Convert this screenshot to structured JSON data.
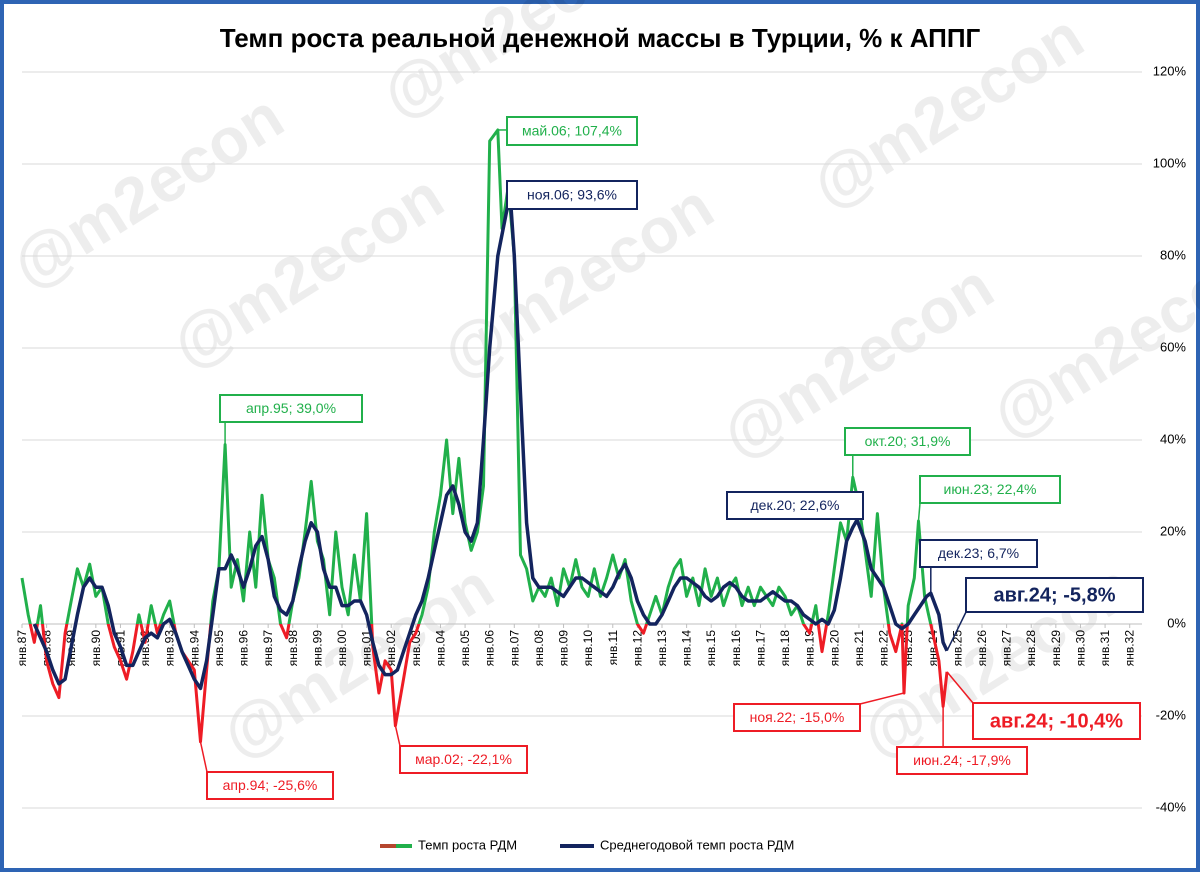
{
  "chart_data": {
    "type": "line",
    "title": "Темп роста реальной денежной массы в Турции, % к АППГ",
    "watermark": "@m2econ",
    "xlim": [
      1987,
      2032.5
    ],
    "xticks": [
      {
        "value": 1987,
        "label": "янв.87"
      },
      {
        "value": 1988,
        "label": "янв.88"
      },
      {
        "value": 1989,
        "label": "янв.89"
      },
      {
        "value": 1990,
        "label": "янв.90"
      },
      {
        "value": 1991,
        "label": "янв.91"
      },
      {
        "value": 1992,
        "label": "янв.92"
      },
      {
        "value": 1993,
        "label": "янв.93"
      },
      {
        "value": 1994,
        "label": "янв.94"
      },
      {
        "value": 1995,
        "label": "янв.95"
      },
      {
        "value": 1996,
        "label": "янв.96"
      },
      {
        "value": 1997,
        "label": "янв.97"
      },
      {
        "value": 1998,
        "label": "янв.98"
      },
      {
        "value": 1999,
        "label": "янв.99"
      },
      {
        "value": 2000,
        "label": "янв.00"
      },
      {
        "value": 2001,
        "label": "янв.01"
      },
      {
        "value": 2002,
        "label": "янв.02"
      },
      {
        "value": 2003,
        "label": "янв.03"
      },
      {
        "value": 2004,
        "label": "янв.04"
      },
      {
        "value": 2005,
        "label": "янв.05"
      },
      {
        "value": 2006,
        "label": "янв.06"
      },
      {
        "value": 2007,
        "label": "янв.07"
      },
      {
        "value": 2008,
        "label": "янв.08"
      },
      {
        "value": 2009,
        "label": "янв.09"
      },
      {
        "value": 2010,
        "label": "янв.10"
      },
      {
        "value": 2011,
        "label": "янв.11"
      },
      {
        "value": 2012,
        "label": "янв.12"
      },
      {
        "value": 2013,
        "label": "янв.13"
      },
      {
        "value": 2014,
        "label": "янв.14"
      },
      {
        "value": 2015,
        "label": "янв.15"
      },
      {
        "value": 2016,
        "label": "янв.16"
      },
      {
        "value": 2017,
        "label": "янв.17"
      },
      {
        "value": 2018,
        "label": "янв.18"
      },
      {
        "value": 2019,
        "label": "янв.19"
      },
      {
        "value": 2020,
        "label": "янв.20"
      },
      {
        "value": 2021,
        "label": "янв.21"
      },
      {
        "value": 2022,
        "label": "янв.22"
      },
      {
        "value": 2023,
        "label": "янв.23"
      },
      {
        "value": 2024,
        "label": "янв.24"
      },
      {
        "value": 2025,
        "label": "янв.25"
      },
      {
        "value": 2026,
        "label": "янв.26"
      },
      {
        "value": 2027,
        "label": "янв.27"
      },
      {
        "value": 2028,
        "label": "янв.28"
      },
      {
        "value": 2029,
        "label": "янв.29"
      },
      {
        "value": 2030,
        "label": "янв.30"
      },
      {
        "value": 2031,
        "label": "янв.31"
      },
      {
        "value": 2032,
        "label": "янв.32"
      }
    ],
    "ylim": [
      -40,
      120
    ],
    "yticks": [
      {
        "value": -40,
        "label": "-40%"
      },
      {
        "value": -20,
        "label": "-20%"
      },
      {
        "value": 0,
        "label": "0%"
      },
      {
        "value": 20,
        "label": "20%"
      },
      {
        "value": 40,
        "label": "40%"
      },
      {
        "value": 60,
        "label": "60%"
      },
      {
        "value": 80,
        "label": "80%"
      },
      {
        "value": 100,
        "label": "100%"
      },
      {
        "value": 120,
        "label": "120%"
      }
    ],
    "grid": true,
    "series": [
      {
        "name": "Темп роста РДМ",
        "color": "#21b04b",
        "negative_color": "#ee1c25",
        "x": [
          1987,
          1987.25,
          1987.5,
          1987.75,
          1988,
          1988.25,
          1988.5,
          1988.75,
          1989,
          1989.25,
          1989.5,
          1989.75,
          1990,
          1990.25,
          1990.5,
          1990.75,
          1991,
          1991.25,
          1991.5,
          1991.75,
          1992,
          1992.25,
          1992.5,
          1992.75,
          1993,
          1993.25,
          1993.5,
          1993.75,
          1994,
          1994.25,
          1994.5,
          1994.75,
          1995,
          1995.25,
          1995.5,
          1995.75,
          1996,
          1996.25,
          1996.5,
          1996.75,
          1997,
          1997.25,
          1997.5,
          1997.75,
          1998,
          1998.25,
          1998.5,
          1998.75,
          1999,
          1999.25,
          1999.5,
          1999.75,
          2000,
          2000.25,
          2000.5,
          2000.75,
          2001,
          2001.25,
          2001.5,
          2001.75,
          2002,
          2002.17,
          2002.5,
          2002.75,
          2003,
          2003.25,
          2003.5,
          2003.75,
          2004,
          2004.25,
          2004.5,
          2004.75,
          2005,
          2005.25,
          2005.5,
          2005.75,
          2006,
          2006.33,
          2006.5,
          2006.75,
          2007,
          2007.25,
          2007.5,
          2007.75,
          2008,
          2008.25,
          2008.5,
          2008.75,
          2009,
          2009.25,
          2009.5,
          2009.75,
          2010,
          2010.25,
          2010.5,
          2010.75,
          2011,
          2011.25,
          2011.5,
          2011.75,
          2012,
          2012.25,
          2012.5,
          2012.75,
          2013,
          2013.25,
          2013.5,
          2013.75,
          2014,
          2014.25,
          2014.5,
          2014.75,
          2015,
          2015.25,
          2015.5,
          2015.75,
          2016,
          2016.25,
          2016.5,
          2016.75,
          2017,
          2017.25,
          2017.5,
          2017.75,
          2018,
          2018.25,
          2018.5,
          2018.75,
          2019,
          2019.25,
          2019.5,
          2019.75,
          2020,
          2020.25,
          2020.5,
          2020.75,
          2021,
          2021.25,
          2021.5,
          2021.75,
          2022,
          2022.25,
          2022.5,
          2022.75,
          2022.83,
          2023,
          2023.25,
          2023.42,
          2023.67,
          2023.83,
          2024,
          2024.25,
          2024.42,
          2024.58
        ],
        "values": [
          10,
          2,
          -4,
          4,
          -8,
          -13,
          -16,
          -2,
          5,
          12,
          8,
          13,
          6,
          8,
          0,
          -5,
          -8,
          -12,
          -6,
          2,
          -4,
          4,
          -2,
          2,
          5,
          -2,
          -6,
          -8,
          -10,
          -25.6,
          -10,
          5,
          12,
          39.0,
          8,
          14,
          5,
          20,
          8,
          28,
          14,
          10,
          0,
          -3,
          5,
          10,
          20,
          31,
          18,
          14,
          2,
          20,
          8,
          2,
          15,
          5,
          24,
          -5,
          -15,
          -8,
          -10,
          -22.1,
          -12,
          -4,
          -2,
          2,
          8,
          20,
          28,
          40,
          24,
          36,
          22,
          16,
          20,
          30,
          105,
          107.4,
          86,
          95,
          80,
          15,
          12,
          5,
          8,
          6,
          10,
          4,
          12,
          8,
          14,
          8,
          6,
          12,
          6,
          10,
          15,
          10,
          14,
          5,
          0,
          -2,
          2,
          6,
          2,
          8,
          12,
          14,
          6,
          10,
          4,
          12,
          6,
          10,
          4,
          8,
          10,
          4,
          8,
          4,
          8,
          6,
          4,
          8,
          6,
          2,
          4,
          0,
          -2,
          4,
          -6,
          2,
          12,
          22,
          18,
          31.9,
          26,
          16,
          6,
          24,
          8,
          -2,
          -6,
          0,
          -15.0,
          4,
          10,
          22.4,
          6,
          2,
          -2,
          -8,
          -17.9,
          -10.4
        ]
      },
      {
        "name": "Среднегодовой темп роста РДМ",
        "color": "#13245e",
        "x": [
          1987.5,
          1987.75,
          1988,
          1988.25,
          1988.5,
          1988.75,
          1989,
          1989.25,
          1989.5,
          1989.75,
          1990,
          1990.25,
          1990.5,
          1990.75,
          1991,
          1991.25,
          1991.5,
          1991.75,
          1992,
          1992.25,
          1992.5,
          1992.75,
          1993,
          1993.25,
          1993.5,
          1993.75,
          1994,
          1994.25,
          1994.5,
          1994.75,
          1995,
          1995.25,
          1995.5,
          1995.75,
          1996,
          1996.25,
          1996.5,
          1996.75,
          1997,
          1997.25,
          1997.5,
          1997.75,
          1998,
          1998.25,
          1998.5,
          1998.75,
          1999,
          1999.25,
          1999.5,
          1999.75,
          2000,
          2000.25,
          2000.5,
          2000.75,
          2001,
          2001.25,
          2001.5,
          2001.75,
          2002,
          2002.25,
          2002.5,
          2002.75,
          2003,
          2003.25,
          2003.5,
          2003.75,
          2004,
          2004.25,
          2004.5,
          2004.75,
          2005,
          2005.25,
          2005.5,
          2005.75,
          2006,
          2006.33,
          2006.83,
          2007,
          2007.25,
          2007.5,
          2007.75,
          2008,
          2008.25,
          2008.5,
          2008.75,
          2009,
          2009.25,
          2009.5,
          2009.75,
          2010,
          2010.25,
          2010.5,
          2010.75,
          2011,
          2011.25,
          2011.5,
          2011.75,
          2012,
          2012.25,
          2012.5,
          2012.75,
          2013,
          2013.25,
          2013.5,
          2013.75,
          2014,
          2014.25,
          2014.5,
          2014.75,
          2015,
          2015.25,
          2015.5,
          2015.75,
          2016,
          2016.25,
          2016.5,
          2016.75,
          2017,
          2017.25,
          2017.5,
          2017.75,
          2018,
          2018.25,
          2018.5,
          2018.75,
          2019,
          2019.25,
          2019.5,
          2019.75,
          2020,
          2020.25,
          2020.5,
          2020.75,
          2020.92,
          2021.25,
          2021.5,
          2021.75,
          2022,
          2022.25,
          2022.5,
          2022.75,
          2023,
          2023.25,
          2023.5,
          2023.75,
          2023.92,
          2024.25,
          2024.42,
          2024.58
        ],
        "values": [
          0,
          -3,
          -6,
          -10,
          -13,
          -12,
          -5,
          2,
          8,
          10,
          8,
          8,
          4,
          -2,
          -5,
          -9,
          -9,
          -6,
          -3,
          -2,
          -3,
          0,
          1,
          -2,
          -6,
          -9,
          -12,
          -14,
          -8,
          2,
          12,
          12,
          15,
          12,
          8,
          12,
          17,
          19,
          14,
          6,
          3,
          2,
          5,
          12,
          18,
          22,
          20,
          12,
          8,
          8,
          4,
          4,
          5,
          5,
          2,
          -4,
          -9,
          -11,
          -11,
          -10,
          -6,
          -2,
          2,
          5,
          10,
          16,
          22,
          28,
          30,
          26,
          20,
          18,
          22,
          40,
          60,
          80,
          93.6,
          80,
          50,
          22,
          10,
          8,
          8,
          8,
          7,
          6,
          8,
          10,
          10,
          9,
          8,
          7,
          6,
          8,
          11,
          13,
          10,
          5,
          2,
          0,
          0,
          2,
          5,
          8,
          10,
          10,
          9,
          8,
          6,
          5,
          6,
          8,
          9,
          8,
          6,
          5,
          5,
          5,
          6,
          7,
          6,
          5,
          5,
          4,
          2,
          1,
          0,
          1,
          0,
          3,
          10,
          18,
          21,
          22.6,
          18,
          12,
          10,
          8,
          4,
          0,
          -1,
          0,
          2,
          4,
          6,
          6.7,
          2,
          -4,
          -5.8
        ]
      }
    ],
    "annotations": [
      {
        "text": "май.06; 107,4%",
        "x": 2006.33,
        "y": 107.4,
        "color": "#21b04b"
      },
      {
        "text": "ноя.06; 93,6%",
        "x": 2006.83,
        "y": 93.6,
        "color": "#13245e"
      },
      {
        "text": "апр.95; 39,0%",
        "x": 1995.25,
        "y": 39.0,
        "color": "#21b04b"
      },
      {
        "text": "апр.94; -25,6%",
        "x": 1994.25,
        "y": -25.6,
        "color": "#ee1c25"
      },
      {
        "text": "мар.02; -22,1%",
        "x": 2002.17,
        "y": -22.1,
        "color": "#ee1c25"
      },
      {
        "text": "окт.20; 31,9%",
        "x": 2020.75,
        "y": 31.9,
        "color": "#21b04b"
      },
      {
        "text": "дек.20; 22,6%",
        "x": 2020.92,
        "y": 22.6,
        "color": "#13245e"
      },
      {
        "text": "июн.23; 22,4%",
        "x": 2023.42,
        "y": 22.4,
        "color": "#21b04b"
      },
      {
        "text": "дек.23; 6,7%",
        "x": 2023.92,
        "y": 6.7,
        "color": "#13245e"
      },
      {
        "text": "авг.24; -5,8%",
        "x": 2024.58,
        "y": -5.8,
        "color": "#13245e"
      },
      {
        "text": "ноя.22; -15,0%",
        "x": 2022.83,
        "y": -15.0,
        "color": "#ee1c25"
      },
      {
        "text": "июн.24; -17,9%",
        "x": 2024.42,
        "y": -17.9,
        "color": "#ee1c25"
      },
      {
        "text": "авг.24; -10,4%",
        "x": 2024.58,
        "y": -10.4,
        "color": "#ee1c25"
      }
    ]
  }
}
